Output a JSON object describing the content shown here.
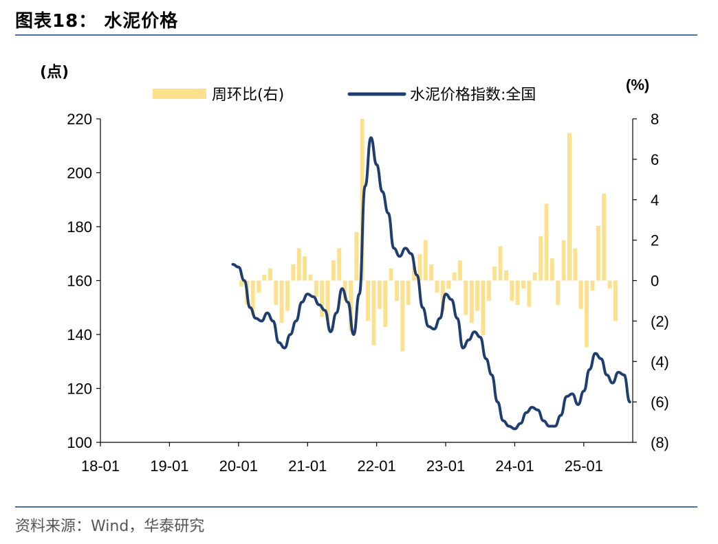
{
  "figure": {
    "title": "图表18：  水泥价格",
    "source": "资料来源：Wind，华泰研究"
  },
  "chart_data": {
    "type": "line",
    "left_unit": "(点)",
    "right_unit": "(%)",
    "x_ticks": [
      "18-01",
      "19-01",
      "20-01",
      "21-01",
      "22-01",
      "23-01",
      "24-01",
      "25-01"
    ],
    "left_axis": {
      "ylim": [
        100,
        220
      ],
      "ticks": [
        "100",
        "120",
        "140",
        "160",
        "180",
        "200",
        "220"
      ]
    },
    "right_axis": {
      "ylim": [
        -8,
        8
      ],
      "ticks": [
        "(8)",
        "(6)",
        "(4)",
        "(2)",
        "0",
        "2",
        "4",
        "6",
        "8"
      ]
    },
    "legend_position": "top",
    "series": [
      {
        "name": "周环比(右)",
        "kind": "bar",
        "axis": "right",
        "color": "#fbe08e",
        "points": [
          [
            "2020-01",
            -0.3
          ],
          [
            "2020-02",
            -1.2
          ],
          [
            "2020-03",
            -1.7
          ],
          [
            "2020-04",
            -0.6
          ],
          [
            "2020-05",
            0.3
          ],
          [
            "2020-06",
            0.6
          ],
          [
            "2020-07",
            -1.2
          ],
          [
            "2020-08",
            -2.1
          ],
          [
            "2020-09",
            -1.5
          ],
          [
            "2020-10",
            0.8
          ],
          [
            "2020-11",
            1.6
          ],
          [
            "2020-12",
            1.2
          ],
          [
            "2021-01",
            0.3
          ],
          [
            "2021-02",
            -0.8
          ],
          [
            "2021-03",
            -1.8
          ],
          [
            "2021-04",
            -2.0
          ],
          [
            "2021-05",
            1.0
          ],
          [
            "2021-06",
            1.6
          ],
          [
            "2021-07",
            -1.0
          ],
          [
            "2021-08",
            -2.5
          ],
          [
            "2021-09",
            2.4
          ],
          [
            "2021-10",
            8.0
          ],
          [
            "2021-11",
            -2.0
          ],
          [
            "2021-12",
            -3.2
          ],
          [
            "2022-01",
            -1.4
          ],
          [
            "2022-02",
            -2.3
          ],
          [
            "2022-03",
            0.6
          ],
          [
            "2022-04",
            -1.0
          ],
          [
            "2022-05",
            -3.5
          ],
          [
            "2022-06",
            -1.2
          ],
          [
            "2022-07",
            0.7
          ],
          [
            "2022-08",
            1.3
          ],
          [
            "2022-09",
            2.0
          ],
          [
            "2022-10",
            0.8
          ],
          [
            "2022-11",
            -0.6
          ],
          [
            "2022-12",
            -1.5
          ],
          [
            "2023-01",
            -0.4
          ],
          [
            "2023-02",
            0.4
          ],
          [
            "2023-03",
            1.0
          ],
          [
            "2023-04",
            -1.7
          ],
          [
            "2023-05",
            -2.1
          ],
          [
            "2023-06",
            -1.5
          ],
          [
            "2023-07",
            -2.7
          ],
          [
            "2023-08",
            -1.0
          ],
          [
            "2023-09",
            0.7
          ],
          [
            "2023-10",
            1.7
          ],
          [
            "2023-11",
            0.5
          ],
          [
            "2023-12",
            -1.0
          ],
          [
            "2024-01",
            -1.2
          ],
          [
            "2024-02",
            -0.4
          ],
          [
            "2024-03",
            -1.3
          ],
          [
            "2024-04",
            0.4
          ],
          [
            "2024-05",
            2.2
          ],
          [
            "2024-06",
            3.8
          ],
          [
            "2024-07",
            1.1
          ],
          [
            "2024-08",
            -1.2
          ],
          [
            "2024-09",
            2.0
          ],
          [
            "2024-10",
            7.3
          ],
          [
            "2024-11",
            1.6
          ],
          [
            "2024-12",
            -1.4
          ],
          [
            "2025-01",
            -3.3
          ],
          [
            "2025-02",
            -0.5
          ],
          [
            "2025-03",
            2.7
          ],
          [
            "2025-04",
            4.3
          ],
          [
            "2025-05",
            -0.4
          ],
          [
            "2025-06",
            -2.0
          ]
        ]
      },
      {
        "name": "水泥价格指数:全国",
        "kind": "line",
        "axis": "left",
        "color": "#1f3d6e",
        "points": [
          [
            "2019-12",
            166
          ],
          [
            "2020-01",
            165
          ],
          [
            "2020-02",
            160
          ],
          [
            "2020-03",
            150
          ],
          [
            "2020-04",
            146
          ],
          [
            "2020-05",
            145
          ],
          [
            "2020-06",
            148
          ],
          [
            "2020-07",
            145
          ],
          [
            "2020-08",
            137
          ],
          [
            "2020-09",
            135
          ],
          [
            "2020-10",
            140
          ],
          [
            "2020-11",
            145
          ],
          [
            "2020-12",
            152
          ],
          [
            "2021-01",
            155
          ],
          [
            "2021-02",
            154
          ],
          [
            "2021-03",
            151
          ],
          [
            "2021-04",
            149
          ],
          [
            "2021-05",
            141
          ],
          [
            "2021-06",
            148
          ],
          [
            "2021-07",
            157
          ],
          [
            "2021-08",
            152
          ],
          [
            "2021-09",
            140
          ],
          [
            "2021-10",
            155
          ],
          [
            "2021-11",
            195
          ],
          [
            "2021-12",
            213
          ],
          [
            "2022-01",
            203
          ],
          [
            "2022-02",
            193
          ],
          [
            "2022-03",
            185
          ],
          [
            "2022-04",
            172
          ],
          [
            "2022-05",
            169
          ],
          [
            "2022-06",
            172
          ],
          [
            "2022-07",
            170
          ],
          [
            "2022-08",
            162
          ],
          [
            "2022-09",
            150
          ],
          [
            "2022-10",
            143
          ],
          [
            "2022-11",
            142
          ],
          [
            "2022-12",
            146
          ],
          [
            "2023-01",
            155
          ],
          [
            "2023-02",
            153
          ],
          [
            "2023-03",
            146
          ],
          [
            "2023-04",
            135
          ],
          [
            "2023-05",
            138
          ],
          [
            "2023-06",
            141
          ],
          [
            "2023-07",
            139
          ],
          [
            "2023-08",
            131
          ],
          [
            "2023-09",
            125
          ],
          [
            "2023-10",
            115
          ],
          [
            "2023-11",
            108
          ],
          [
            "2023-12",
            106
          ],
          [
            "2024-01",
            105
          ],
          [
            "2024-02",
            107
          ],
          [
            "2024-03",
            111
          ],
          [
            "2024-04",
            113
          ],
          [
            "2024-05",
            112
          ],
          [
            "2024-06",
            108
          ],
          [
            "2024-07",
            106
          ],
          [
            "2024-08",
            106
          ],
          [
            "2024-09",
            110
          ],
          [
            "2024-10",
            117
          ],
          [
            "2024-11",
            118
          ],
          [
            "2024-12",
            114
          ],
          [
            "2025-01",
            119
          ],
          [
            "2025-02",
            127
          ],
          [
            "2025-03",
            133
          ],
          [
            "2025-04",
            131
          ],
          [
            "2025-05",
            125
          ],
          [
            "2025-06",
            122
          ],
          [
            "2025-07",
            126
          ],
          [
            "2025-08",
            125
          ],
          [
            "2025-09",
            115
          ]
        ]
      }
    ]
  }
}
